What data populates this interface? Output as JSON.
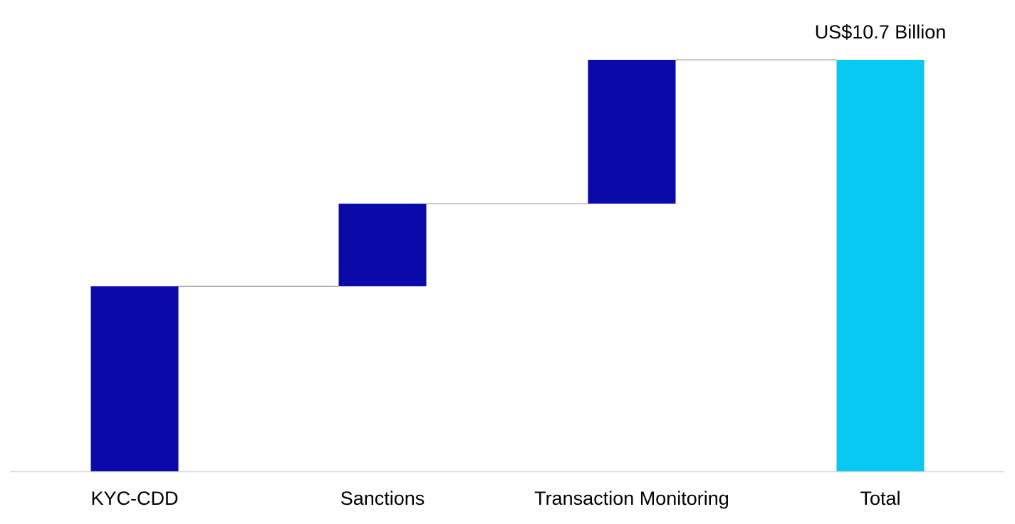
{
  "chart_data": {
    "type": "bar",
    "subtype": "waterfall",
    "categories": [
      "KYC-CDD",
      "Sanctions",
      "Transaction Monitoring",
      "Total"
    ],
    "values": [
      4.81,
      2.15,
      3.74,
      10.7
    ],
    "is_total": [
      false,
      false,
      false,
      true
    ],
    "total_label": "US$10.7 Billion",
    "ylim": [
      0,
      10.7
    ],
    "grid": false,
    "connectors": true,
    "colors": {
      "step": "#0a0aab",
      "total": "#06c8f2",
      "connector": "#a6a6a6",
      "axis": "#d9d9d9"
    }
  }
}
